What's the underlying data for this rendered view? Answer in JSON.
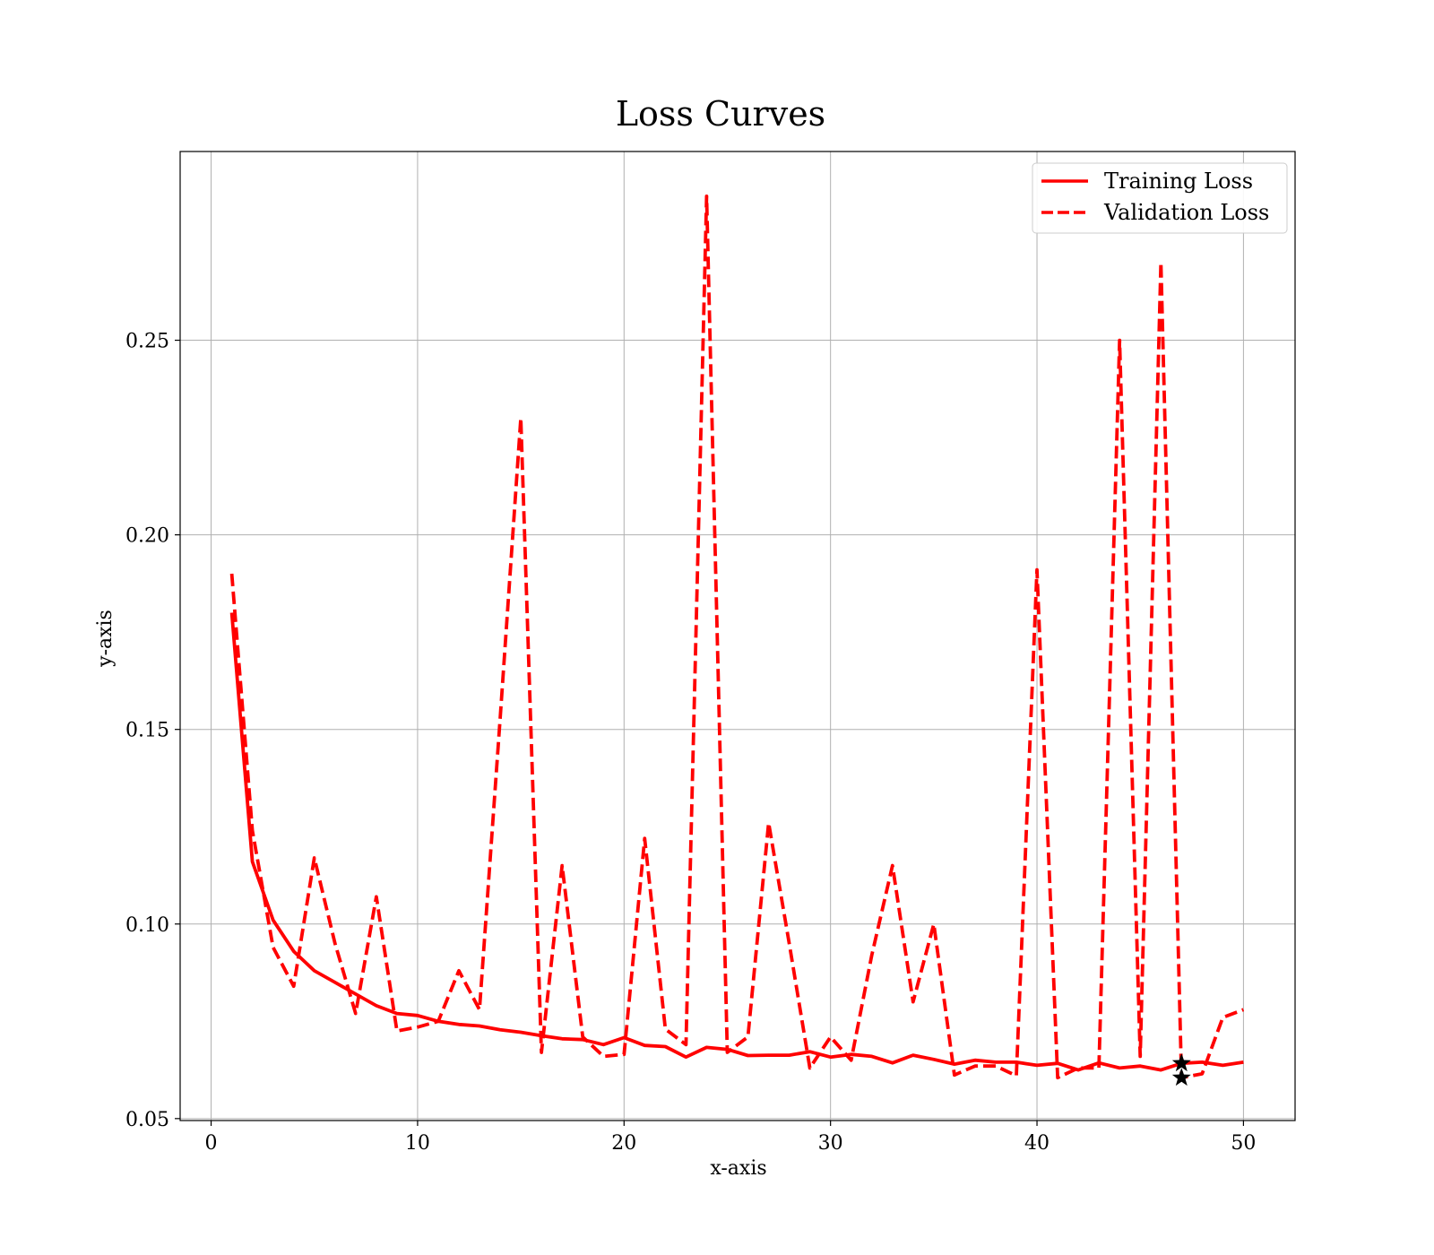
{
  "chart_data": {
    "type": "line",
    "title": "Loss Curves",
    "xlabel": "x-axis",
    "ylabel": "y-axis",
    "xlim": [
      -1.5,
      52.5
    ],
    "ylim": [
      0.0495,
      0.2985
    ],
    "xticks": [
      0,
      10,
      20,
      30,
      40,
      50
    ],
    "yticks": [
      0.05,
      0.1,
      0.15,
      0.2,
      0.25
    ],
    "ytick_labels": [
      "0.05",
      "0.10",
      "0.15",
      "0.20",
      "0.25"
    ],
    "grid": true,
    "legend_position": "top-right",
    "series": [
      {
        "name": "Training Loss",
        "style": "solid",
        "color": "#ff0000",
        "x": [
          1,
          2,
          3,
          4,
          5,
          6,
          7,
          8,
          9,
          10,
          11,
          12,
          13,
          14,
          15,
          16,
          17,
          18,
          19,
          20,
          21,
          22,
          23,
          24,
          25,
          26,
          27,
          28,
          29,
          30,
          31,
          32,
          33,
          34,
          35,
          36,
          37,
          38,
          39,
          40,
          41,
          42,
          43,
          44,
          45,
          46,
          47,
          48,
          49,
          50
        ],
        "values": [
          0.18,
          0.116,
          0.101,
          0.093,
          0.088,
          0.085,
          0.082,
          0.079,
          0.077,
          0.0765,
          0.075,
          0.0742,
          0.0738,
          0.0728,
          0.0722,
          0.0713,
          0.0705,
          0.0703,
          0.069,
          0.0708,
          0.0688,
          0.0685,
          0.0658,
          0.0683,
          0.0678,
          0.0662,
          0.0663,
          0.0663,
          0.0672,
          0.0658,
          0.0665,
          0.066,
          0.0643,
          0.0663,
          0.0652,
          0.064,
          0.065,
          0.0645,
          0.0645,
          0.0637,
          0.0642,
          0.0625,
          0.0643,
          0.063,
          0.0635,
          0.0625,
          0.0642,
          0.0645,
          0.0637,
          0.0645
        ]
      },
      {
        "name": "Validation Loss",
        "style": "dashed",
        "color": "#ff0000",
        "x": [
          1,
          2,
          3,
          4,
          5,
          6,
          7,
          8,
          9,
          10,
          11,
          12,
          13,
          14,
          15,
          16,
          17,
          18,
          19,
          20,
          21,
          22,
          23,
          24,
          25,
          26,
          27,
          28,
          29,
          30,
          31,
          32,
          33,
          34,
          35,
          36,
          37,
          38,
          39,
          40,
          41,
          42,
          43,
          44,
          45,
          46,
          47,
          48,
          49,
          50
        ],
        "values": [
          0.19,
          0.124,
          0.094,
          0.084,
          0.117,
          0.095,
          0.077,
          0.107,
          0.0725,
          0.0735,
          0.075,
          0.088,
          0.078,
          0.153,
          0.23,
          0.067,
          0.115,
          0.071,
          0.066,
          0.0665,
          0.122,
          0.073,
          0.069,
          0.287,
          0.067,
          0.071,
          0.126,
          0.095,
          0.063,
          0.071,
          0.065,
          0.092,
          0.115,
          0.08,
          0.1,
          0.0612,
          0.0635,
          0.0635,
          0.061,
          0.191,
          0.0605,
          0.063,
          0.063,
          0.25,
          0.066,
          0.27,
          0.0605,
          0.0615,
          0.076,
          0.078
        ]
      }
    ],
    "markers": [
      {
        "shape": "star",
        "x": 47,
        "y": 0.0642,
        "color": "#000000"
      },
      {
        "shape": "star",
        "x": 47,
        "y": 0.0605,
        "color": "#000000"
      }
    ]
  }
}
